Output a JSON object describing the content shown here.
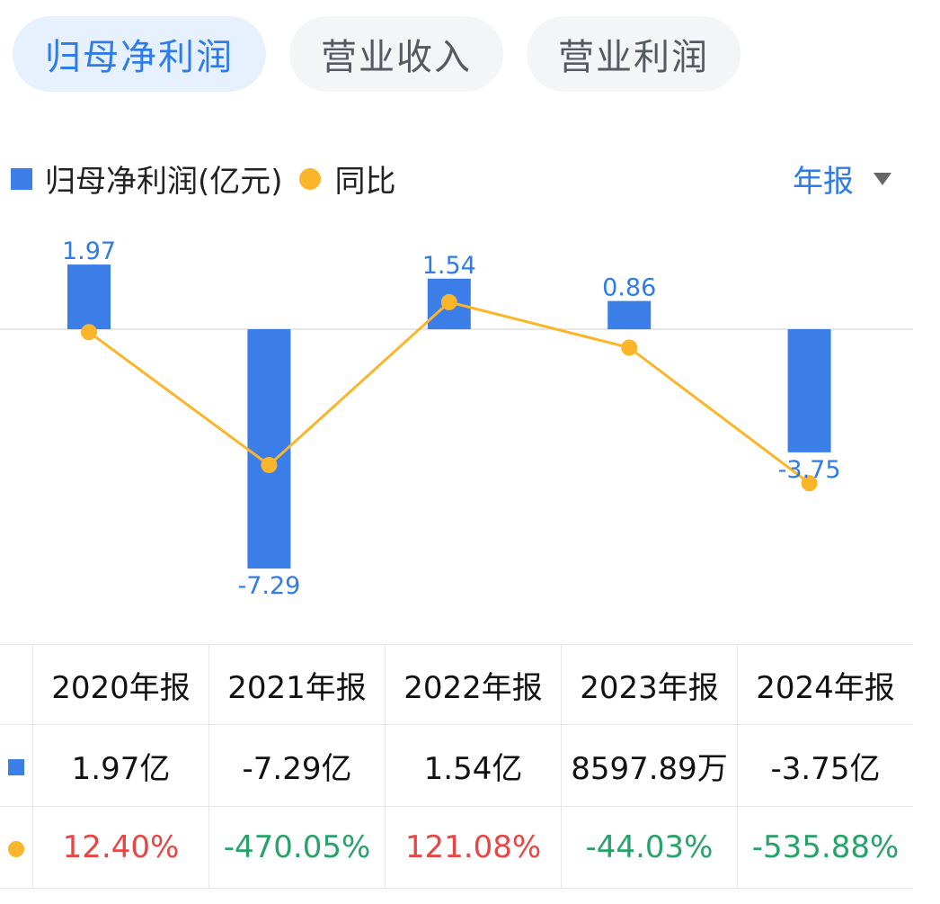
{
  "tabs": [
    {
      "label": "归母净利润",
      "active": true
    },
    {
      "label": "营业收入",
      "active": false
    },
    {
      "label": "营业利润",
      "active": false
    }
  ],
  "legend": {
    "bar_label": "归母净利润(亿元)",
    "line_label": "同比"
  },
  "period_selector": {
    "value": "年报"
  },
  "colors": {
    "bar": "#3b7ee8",
    "line": "#fab52a",
    "accent": "#2e7bea",
    "positive": "#e84545",
    "negative": "#27a36a"
  },
  "chart_data": {
    "type": "bar",
    "categories": [
      "2020年报",
      "2021年报",
      "2022年报",
      "2023年报",
      "2024年报"
    ],
    "series": [
      {
        "name": "归母净利润(亿元)",
        "type": "bar",
        "values": [
          1.97,
          -7.29,
          1.54,
          0.86,
          -3.75
        ],
        "labels": [
          "1.97",
          "-7.29",
          "1.54",
          "0.86",
          "-3.75"
        ]
      },
      {
        "name": "同比",
        "type": "line",
        "values": [
          12.4,
          -470.05,
          121.08,
          -44.03,
          -535.88
        ]
      }
    ],
    "grid": false,
    "legend_position": "top-left"
  },
  "table": {
    "headers": [
      "2020年报",
      "2021年报",
      "2022年报",
      "2023年报",
      "2024年报"
    ],
    "values": [
      "1.97亿",
      "-7.29亿",
      "1.54亿",
      "8597.89万",
      "-3.75亿"
    ],
    "yoy": [
      "12.40%",
      "-470.05%",
      "121.08%",
      "-44.03%",
      "-535.88%"
    ]
  }
}
